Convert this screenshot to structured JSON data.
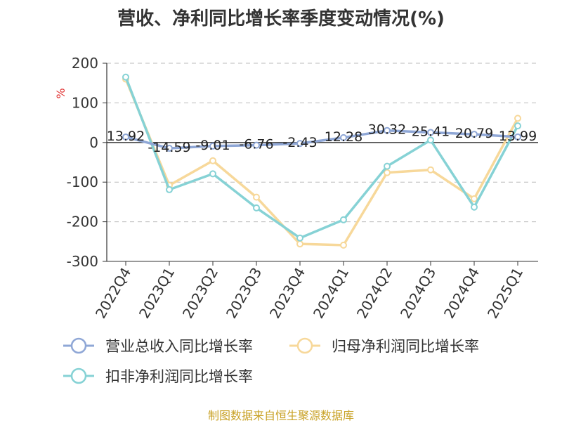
{
  "chart_data": {
    "type": "line",
    "title": "营收、净利同比增长率季度变动情况(%)",
    "ylabel": "%",
    "xlabel": "",
    "ylim": [
      -300,
      200
    ],
    "yticks": [
      200,
      100,
      0,
      -100,
      -200,
      -300
    ],
    "grid": true,
    "legend_position": "bottom",
    "categories": [
      "2022Q4",
      "2023Q1",
      "2023Q2",
      "2023Q3",
      "2023Q4",
      "2024Q1",
      "2024Q2",
      "2024Q3",
      "2024Q4",
      "2025Q1"
    ],
    "series": [
      {
        "name": "营业总收入同比增长率",
        "color": "#8fa7d6",
        "values": [
          13.92,
          -14.59,
          -9.01,
          -6.76,
          -2.43,
          12.28,
          30.32,
          25.41,
          20.79,
          13.99
        ],
        "labels": [
          "13.92",
          "-14.59",
          "-9.01",
          "-6.76",
          "-2.43",
          "12.28",
          "30.32",
          "25.41",
          "20.79",
          "13.99"
        ]
      },
      {
        "name": "归母净利润同比增长率",
        "color": "#f7d89a",
        "values": [
          160,
          -108,
          -46,
          -138,
          -256,
          -259,
          -76,
          -69,
          -142,
          61
        ]
      },
      {
        "name": "扣非净利润同比增长率",
        "color": "#86d2d5",
        "values": [
          165,
          -119,
          -79,
          -165,
          -241,
          -195,
          -60,
          6,
          -163,
          42
        ]
      }
    ]
  },
  "source_note": "制图数据来自恒生聚源数据库"
}
